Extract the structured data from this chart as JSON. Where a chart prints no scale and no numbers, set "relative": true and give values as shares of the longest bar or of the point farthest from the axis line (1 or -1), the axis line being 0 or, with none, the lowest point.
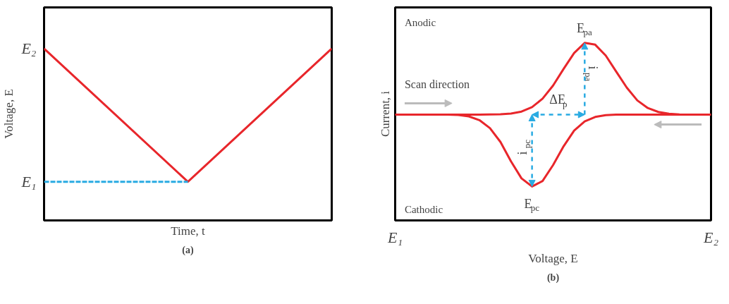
{
  "chart_data": [
    {
      "type": "line",
      "relative": true,
      "title": "(a)",
      "xlabel": "Time, t",
      "ylabel": "Voltage, E",
      "categories": [
        null,
        null,
        null
      ],
      "series": [
        {
          "color": "#e8262b",
          "values": [
            1,
            0.225,
            1
          ]
        },
        {
          "color": "#29abe2",
          "values": [
            0.225,
            0.225,
            null
          ],
          "line_style": "dashed"
        }
      ],
      "annotations": [
        "E₂",
        "E₁"
      ]
    },
    {
      "type": "line",
      "relative": true,
      "title": "(b)",
      "xlabel": "Voltage, E",
      "ylabel": "Current, i",
      "categories": [
        null,
        null,
        null,
        null,
        null,
        null,
        null,
        null,
        null,
        null,
        null,
        null,
        null,
        null,
        null,
        null,
        null,
        null,
        null,
        null,
        null,
        null,
        null,
        null,
        null,
        null,
        null,
        null,
        null,
        null,
        null
      ],
      "series": [
        {
          "color": "#e8262b",
          "values": [
            0.596,
            0.596,
            0.596,
            0.596,
            0.596,
            0.596,
            0.596,
            0.596,
            0.596,
            0.597,
            0.598,
            0.602,
            0.613,
            0.638,
            0.686,
            0.76,
            0.854,
            0.943,
            1,
            0.99,
            0.929,
            0.838,
            0.748,
            0.676,
            0.633,
            0.611,
            0.601,
            0.597,
            0.596,
            0.596,
            0.596
          ]
        },
        {
          "color": "#e8262b",
          "values": [
            0.596,
            0.596,
            0.596,
            0.596,
            0.596,
            0.596,
            0.594,
            0.586,
            0.565,
            0.52,
            0.442,
            0.333,
            0.237,
            0.191,
            0.222,
            0.312,
            0.418,
            0.506,
            0.558,
            0.583,
            0.593,
            0.596,
            0.596,
            0.596,
            0.596,
            0.596,
            0.596,
            0.596,
            0.596,
            0.596,
            0.596
          ]
        }
      ],
      "annotations": [
        "Anodic",
        "Cathodic",
        "Scan direction",
        "E$_{pa}$",
        "E$_{pc}$",
        "i$_{pa}$",
        "i$_{pc}$",
        "ΔE$_{p}$",
        "E₁",
        "E₂"
      ]
    }
  ]
}
